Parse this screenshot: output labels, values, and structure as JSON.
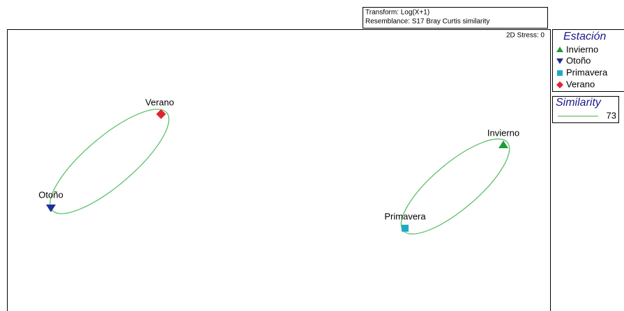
{
  "header": {
    "lines": [
      "Transform: Log(X+1)",
      "Resemblance: S17 Bray Curtis similarity"
    ]
  },
  "stress": "2D Stress: 0",
  "groups": [
    {
      "name": "Invierno"
    },
    {
      "name": "Otoño"
    },
    {
      "name": "Primavera"
    },
    {
      "name": "Verano"
    }
  ],
  "legend_title": "Estación",
  "similarity": {
    "title": "Similarity",
    "value": 73
  }
}
